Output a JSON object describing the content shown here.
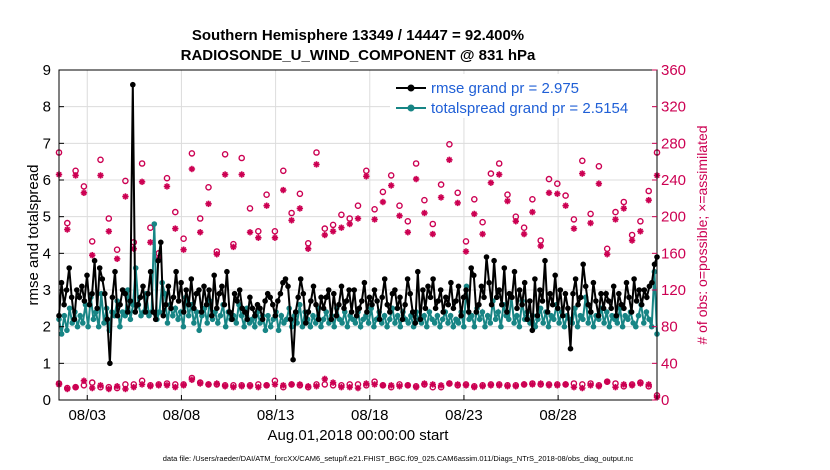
{
  "chart_data": {
    "type": "line",
    "title": "Southern Hemisphere 13349 / 14447 = 92.400%",
    "subtitle": "RADIOSONDE_U_WIND_COMPONENT @ 831 hPa",
    "xlabel": "Aug.01,2018 00:00:00 start",
    "ylabel": "rmse and totalspread",
    "ylabel_right": "# of obs: o=possible; ×=assimilated",
    "footer": "data file: /Users/raeder/DAI/ATM_forcXX/CAM6_setup/f.e21.FHIST_BGC.f09_025.CAM6assim.011/Diags_NTrS_2018-08/obs_diag_output.nc",
    "xlim": [
      1.5,
      33.25
    ],
    "ylim": [
      0,
      9
    ],
    "ylim_right": [
      0,
      360
    ],
    "x_ticks": [
      3,
      8,
      13,
      18,
      23,
      28
    ],
    "x_tick_labels": [
      "08/03",
      "08/08",
      "08/13",
      "08/18",
      "08/23",
      "08/28"
    ],
    "y_ticks": [
      0,
      1,
      2,
      3,
      4,
      5,
      6,
      7,
      8,
      9
    ],
    "y_ticks_right": [
      0,
      40,
      80,
      120,
      160,
      200,
      240,
      280,
      320,
      360
    ],
    "grid": true,
    "legend_position": "top-right",
    "series": [
      {
        "name": "rmse",
        "label": "rmse grand pr = 2.975",
        "color": "#000000",
        "axis": "left",
        "values": [
          2.3,
          3.2,
          2.6,
          3.0,
          3.6,
          2.8,
          2.2,
          3.0,
          2.8,
          3.1,
          2.7,
          3.4,
          2.6,
          2.9,
          3.8,
          2.5,
          3.6,
          3.3,
          2.9,
          2.2,
          1.0,
          2.8,
          3.5,
          2.3,
          2.6,
          3.0,
          2.9,
          2.4,
          2.7,
          8.6,
          2.4,
          2.6,
          2.8,
          3.1,
          2.4,
          2.9,
          3.5,
          2.4,
          2.2,
          3.8,
          4.3,
          2.3,
          2.6,
          3.1,
          2.5,
          2.8,
          3.5,
          2.7,
          3.2,
          2.4,
          3.0,
          2.6,
          3.3,
          2.5,
          2.9,
          3.0,
          2.4,
          3.1,
          2.6,
          3.0,
          2.3,
          3.4,
          2.5,
          2.9,
          3.1,
          2.6,
          3.5,
          2.4,
          2.2,
          2.9,
          2.7,
          3.0,
          2.5,
          2.4,
          2.2,
          2.8,
          2.5,
          2.3,
          2.6,
          2.5,
          2.2,
          2.7,
          2.9,
          2.8,
          2.6,
          2.3,
          2.7,
          2.9,
          3.2,
          3.3,
          3.1,
          2.2,
          1.1,
          2.4,
          2.8,
          3.3,
          2.9,
          2.1,
          2.4,
          2.7,
          3.1,
          2.6,
          2.2,
          2.8,
          2.5,
          2.8,
          3.0,
          2.2,
          2.9,
          2.3,
          2.6,
          3.1,
          2.5,
          2.7,
          3.0,
          2.4,
          3.0,
          2.3,
          2.5,
          2.7,
          3.2,
          2.4,
          2.8,
          2.6,
          3.0,
          2.7,
          2.2,
          2.8,
          3.3,
          2.6,
          2.4,
          2.9,
          3.0,
          2.5,
          2.8,
          2.2,
          2.6,
          3.3,
          2.9,
          2.4,
          2.1,
          3.5,
          2.2,
          3.0,
          2.5,
          3.1,
          2.8,
          3.3,
          2.5,
          2.7,
          3.0,
          2.4,
          2.8,
          2.6,
          3.2,
          2.5,
          2.7,
          3.1,
          2.3,
          2.8,
          3.0,
          2.4,
          3.6,
          3.4,
          2.4,
          2.6,
          3.1,
          2.8,
          3.9,
          3.2,
          2.6,
          3.8,
          2.8,
          3.0,
          2.6,
          3.6,
          2.4,
          2.9,
          2.8,
          3.5,
          2.5,
          3.0,
          2.6,
          3.2,
          2.2,
          2.7,
          1.9,
          3.3,
          2.3,
          3.0,
          2.7,
          3.8,
          2.4,
          2.9,
          2.6,
          3.4,
          2.5,
          3.0,
          2.3,
          2.9,
          2.5,
          1.4,
          2.9,
          3.3,
          2.6,
          2.8,
          3.7,
          3.1,
          2.6,
          2.4,
          3.2,
          2.7,
          2.3,
          2.9,
          2.5,
          2.9,
          2.7,
          2.5,
          3.1,
          2.3,
          2.9,
          2.6,
          2.5,
          3.2,
          2.8,
          2.4,
          3.3,
          2.7,
          3.0,
          2.6,
          3.0,
          2.8,
          3.1,
          3.2,
          3.7,
          3.9
        ]
      },
      {
        "name": "totalspread",
        "label": "totalspread grand pr = 2.5154",
        "color": "#178585",
        "axis": "left",
        "values": [
          2.2,
          1.8,
          2.3,
          1.9,
          2.5,
          2.1,
          2.4,
          2.0,
          2.3,
          2.1,
          2.6,
          2.0,
          2.8,
          2.2,
          2.4,
          2.0,
          2.9,
          2.1,
          2.5,
          1.9,
          2.4,
          2.3,
          2.7,
          2.0,
          2.4,
          2.3,
          3.0,
          2.2,
          2.6,
          3.6,
          2.6,
          2.3,
          2.4,
          2.9,
          2.3,
          2.4,
          4.8,
          2.2,
          2.4,
          3.2,
          2.9,
          2.1,
          2.6,
          2.3,
          2.5,
          2.2,
          2.4,
          2.0,
          2.8,
          2.3,
          2.6,
          2.1,
          2.4,
          1.9,
          2.3,
          2.5,
          2.1,
          2.7,
          2.2,
          2.4,
          2.1,
          2.3,
          2.6,
          2.0,
          2.4,
          2.2,
          2.3,
          2.1,
          2.6,
          2.3,
          2.0,
          2.5,
          2.1,
          2.2,
          2.0,
          2.4,
          2.1,
          2.3,
          1.9,
          2.3,
          2.0,
          2.2,
          2.4,
          1.9,
          2.3,
          2.1,
          2.2,
          2.5,
          2.0,
          2.3,
          2.1,
          2.6,
          2.0,
          2.4,
          2.2,
          2.0,
          2.3,
          2.1,
          2.5,
          2.0,
          2.2,
          2.4,
          2.1,
          2.3,
          2.0,
          2.5,
          2.2,
          2.1,
          2.4,
          2.0,
          2.3,
          2.2,
          2.1,
          2.4,
          2.0,
          2.2,
          2.3,
          2.1,
          2.5,
          2.0,
          2.2,
          2.4,
          2.1,
          2.3,
          2.0,
          2.2,
          2.5,
          2.1,
          2.3,
          2.0,
          2.4,
          2.2,
          2.1,
          2.3,
          2.0,
          2.4,
          2.2,
          2.1,
          2.3,
          2.0,
          2.4,
          2.2,
          2.1,
          2.3,
          2.0,
          2.2,
          2.4,
          2.1,
          2.3,
          2.0,
          2.2,
          2.1,
          2.4,
          2.0,
          3.1,
          2.2,
          2.3,
          2.0,
          2.5,
          2.2,
          2.4,
          2.0,
          2.3,
          2.1,
          2.7,
          2.2,
          2.4,
          2.0,
          2.6,
          2.3,
          2.2,
          2.8,
          2.1,
          2.3,
          2.0,
          2.7,
          2.2,
          2.4,
          2.1,
          2.3,
          2.0,
          2.2,
          2.5,
          2.1,
          2.4,
          2.0,
          2.3,
          2.2,
          2.6,
          2.1,
          2.4,
          2.0,
          2.3,
          2.2,
          2.1,
          2.5,
          2.0,
          2.3,
          2.2,
          2.8,
          2.1,
          2.4,
          2.0,
          2.3,
          2.2,
          2.5,
          2.1,
          2.4,
          2.0,
          2.3,
          2.2,
          2.1,
          2.5,
          2.0,
          2.3,
          2.2,
          2.4,
          2.1,
          2.0,
          2.3,
          2.6,
          2.1,
          2.4,
          2.2,
          2.0,
          3.5,
          1.8
        ]
      },
      {
        "name": "obs_possible",
        "marker": "o",
        "color": "#cc0052",
        "axis": "right",
        "x_start": 1.5,
        "values": [
          270,
          193,
          250,
          233,
          173,
          262,
          198,
          164,
          239,
          172,
          258,
          188,
          160,
          242,
          205,
          176,
          269,
          198,
          232,
          162,
          268,
          170,
          264,
          209,
          184,
          224,
          184,
          250,
          204,
          225,
          171,
          270,
          187,
          191,
          202,
          198,
          212,
          250,
          208,
          227,
          245,
          212,
          195,
          258,
          218,
          192,
          235,
          279,
          226,
          173,
          219,
          194,
          247,
          258,
          224,
          200,
          188,
          219,
          174,
          241,
          236,
          223,
          197,
          261,
          203,
          255,
          165,
          205,
          216,
          180,
          195,
          228,
          270
        ]
      },
      {
        "name": "obs_assimilated",
        "marker": "×",
        "color": "#cc0052",
        "axis": "right",
        "x_start": 1.5,
        "values": [
          246,
          186,
          245,
          226,
          158,
          245,
          184,
          154,
          222,
          165,
          238,
          172,
          154,
          233,
          187,
          164,
          252,
          183,
          214,
          159,
          246,
          167,
          246,
          183,
          177,
          212,
          177,
          229,
          196,
          209,
          165,
          257,
          180,
          184,
          188,
          192,
          198,
          244,
          197,
          216,
          234,
          201,
          183,
          241,
          204,
          181,
          221,
          262,
          215,
          162,
          203,
          181,
          237,
          246,
          217,
          195,
          181,
          205,
          168,
          226,
          225,
          212,
          187,
          247,
          193,
          236,
          159,
          197,
          209,
          174,
          184,
          218,
          245
        ]
      },
      {
        "name": "obs_possible_low",
        "marker": "o",
        "color": "#cc0052",
        "axis": "right",
        "x_start": 1.5,
        "values": [
          18,
          13,
          14,
          16,
          19,
          14,
          14,
          13,
          17,
          17,
          21,
          16,
          17,
          18,
          17,
          17,
          24,
          19,
          17,
          17,
          16,
          16,
          16,
          16,
          17,
          16,
          21,
          14,
          17,
          16,
          14,
          17,
          17,
          16,
          16,
          17,
          17,
          16,
          20,
          16,
          14,
          17,
          16,
          15,
          17,
          14,
          14,
          18,
          16,
          17,
          15,
          16,
          17,
          17,
          16,
          16,
          17,
          18,
          17,
          17,
          17,
          17,
          18,
          17,
          18,
          16,
          20,
          18,
          15,
          17,
          19,
          15,
          5
        ]
      },
      {
        "name": "obs_assimilated_low",
        "marker": "×",
        "color": "#cc0052",
        "axis": "right",
        "x_start": 1.5,
        "values": [
          17,
          12,
          14,
          21,
          13,
          16,
          12,
          15,
          12,
          14,
          17,
          15,
          16,
          16,
          14,
          16,
          22,
          18,
          17,
          18,
          15,
          14,
          15,
          15,
          14,
          16,
          17,
          16,
          17,
          17,
          15,
          15,
          23,
          19,
          14,
          14,
          13,
          18,
          17,
          16,
          16,
          15,
          16,
          14,
          18,
          17,
          16,
          18,
          17,
          16,
          14,
          15,
          16,
          16,
          15,
          15,
          17,
          17,
          18,
          16,
          16,
          17,
          14,
          13,
          16,
          15,
          20,
          14,
          17,
          16,
          18,
          17,
          3
        ]
      }
    ]
  }
}
